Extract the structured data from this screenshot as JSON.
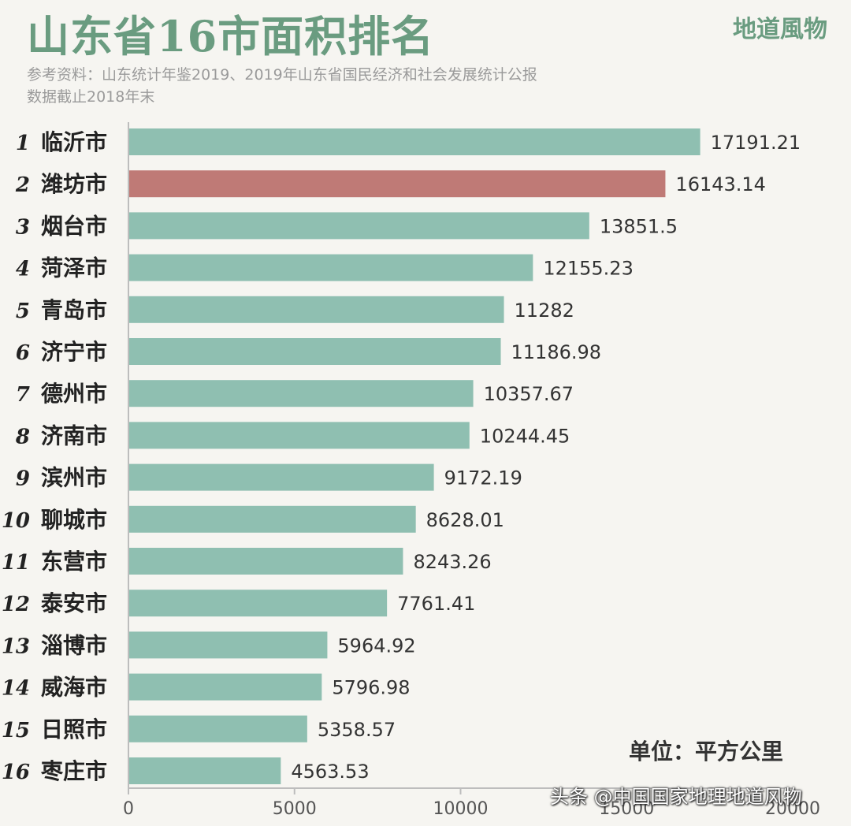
{
  "header": {
    "title": "山东省16市面积排名",
    "brand": "地道風物",
    "source_line1": "参考资料：山东统计年鉴2019、2019年山东省国民经济和社会发展统计公报",
    "source_line2": "数据截止2018年末"
  },
  "unit_label": "单位：平方公里",
  "watermark": "头条 @中国国家地理地道风物",
  "colors": {
    "bar": "#8fbfb1",
    "highlight": "#bf7a76",
    "title": "#6a9c80"
  },
  "chart_data": {
    "type": "bar",
    "orientation": "horizontal",
    "categories": [
      "临沂市",
      "潍坊市",
      "烟台市",
      "菏泽市",
      "青岛市",
      "济宁市",
      "德州市",
      "济南市",
      "滨州市",
      "聊城市",
      "东营市",
      "泰安市",
      "淄博市",
      "威海市",
      "日照市",
      "枣庄市"
    ],
    "ranks": [
      "1",
      "2",
      "3",
      "4",
      "5",
      "6",
      "7",
      "8",
      "9",
      "10",
      "11",
      "12",
      "13",
      "14",
      "15",
      "16"
    ],
    "values": [
      17191.21,
      16143.14,
      13851.5,
      12155.23,
      11282,
      11186.98,
      10357.67,
      10244.45,
      9172.19,
      8628.01,
      8243.26,
      7761.41,
      5964.92,
      5796.98,
      5358.57,
      4563.53
    ],
    "value_labels": [
      "17191.21",
      "16143.14",
      "13851.5",
      "12155.23",
      "11282",
      "11186.98",
      "10357.67",
      "10244.45",
      "9172.19",
      "8628.01",
      "8243.26",
      "7761.41",
      "5964.92",
      "5796.98",
      "5358.57",
      "4563.53"
    ],
    "highlight_index": 1,
    "xlim": [
      0,
      20000
    ],
    "xticks": [
      0,
      5000,
      10000,
      15000,
      20000
    ],
    "xtick_labels": [
      "0",
      "5000",
      "10000",
      "15000",
      "20000"
    ],
    "grid": false,
    "title": "山东省16市面积排名",
    "xlabel": "",
    "ylabel": ""
  }
}
